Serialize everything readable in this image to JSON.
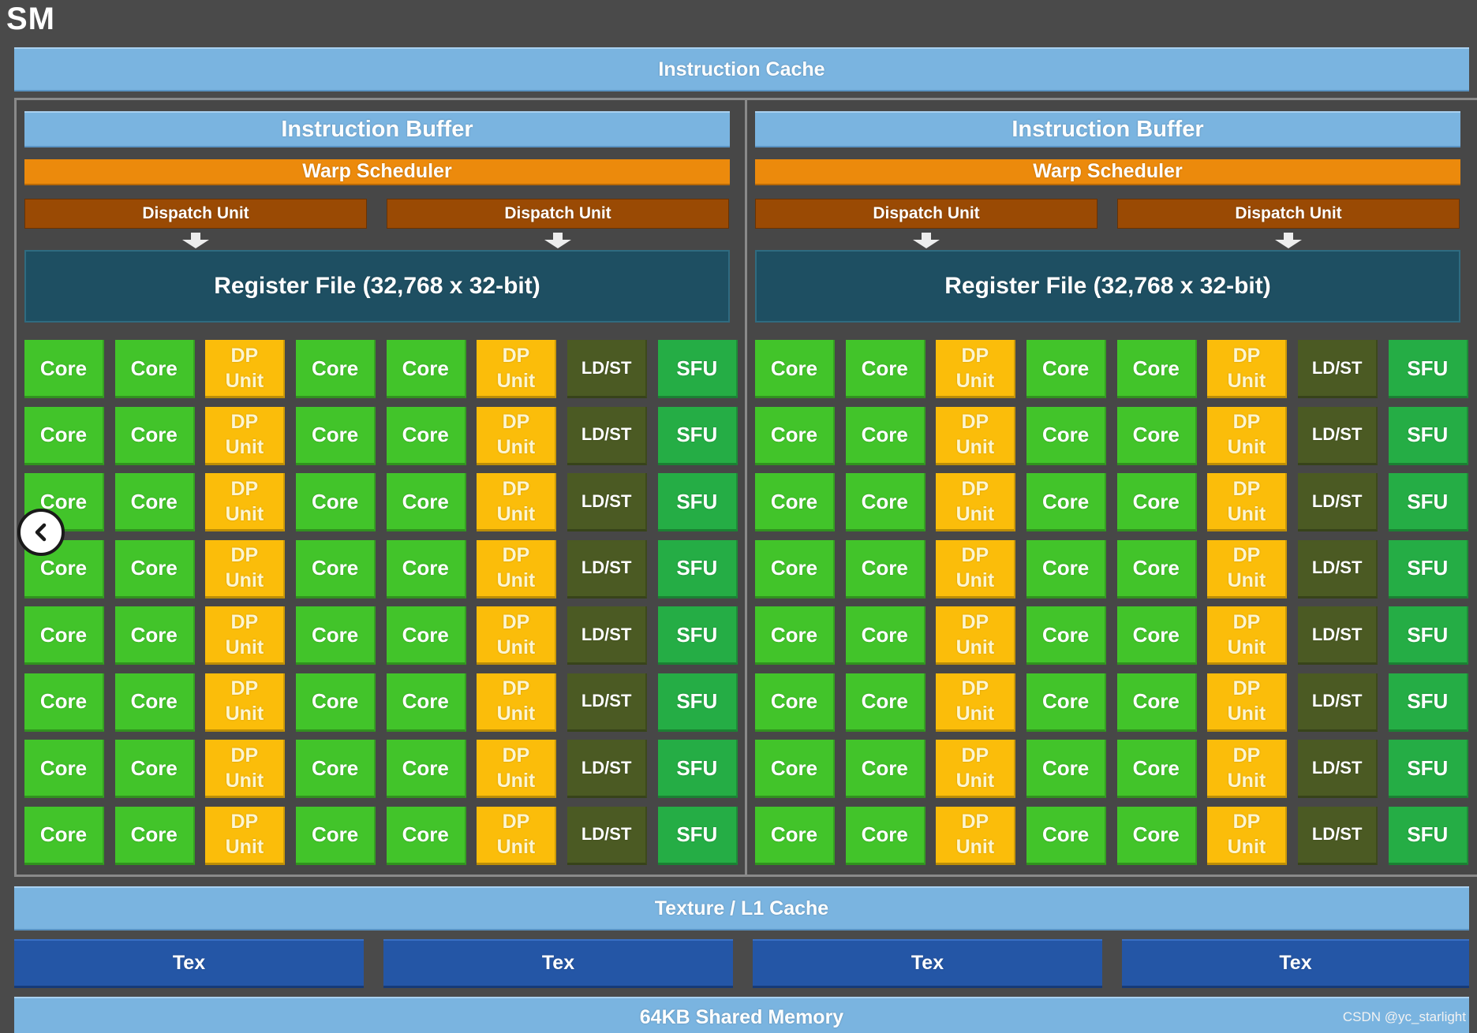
{
  "title": "SM",
  "instruction_cache": "Instruction Cache",
  "halves": [
    {
      "instruction_buffer": "Instruction Buffer",
      "warp_scheduler": "Warp Scheduler",
      "dispatch_units": [
        "Dispatch Unit",
        "Dispatch Unit"
      ],
      "register_file": "Register File (32,768 x 32-bit)"
    },
    {
      "instruction_buffer": "Instruction Buffer",
      "warp_scheduler": "Warp Scheduler",
      "dispatch_units": [
        "Dispatch Unit",
        "Dispatch Unit"
      ],
      "register_file": "Register File (32,768 x 32-bit)"
    }
  ],
  "unit_rows": 8,
  "unit_columns": [
    {
      "type": "core",
      "label": "Core"
    },
    {
      "type": "core",
      "label": "Core"
    },
    {
      "type": "dp",
      "label": "DP\nUnit"
    },
    {
      "type": "core",
      "label": "Core"
    },
    {
      "type": "core",
      "label": "Core"
    },
    {
      "type": "dp",
      "label": "DP\nUnit"
    },
    {
      "type": "ldst",
      "label": "LD/ST"
    },
    {
      "type": "sfu",
      "label": "SFU"
    }
  ],
  "texture_cache": "Texture / L1 Cache",
  "tex_units": [
    "Tex",
    "Tex",
    "Tex",
    "Tex"
  ],
  "shared_memory": "64KB Shared Memory",
  "watermark": "CSDN @yc_starlight",
  "icons": {
    "nav": "chevron-left-icon"
  },
  "colors": {
    "core": "#42c42a",
    "dp_unit": "#fbbd0a",
    "ldst": "#4b5a23",
    "sfu": "#25ad45",
    "cache": "#7ab4e0",
    "warp_scheduler": "#ec8a0c",
    "dispatch_unit": "#9a4a04",
    "register_file": "#1e4f62",
    "tex": "#2456a6"
  }
}
